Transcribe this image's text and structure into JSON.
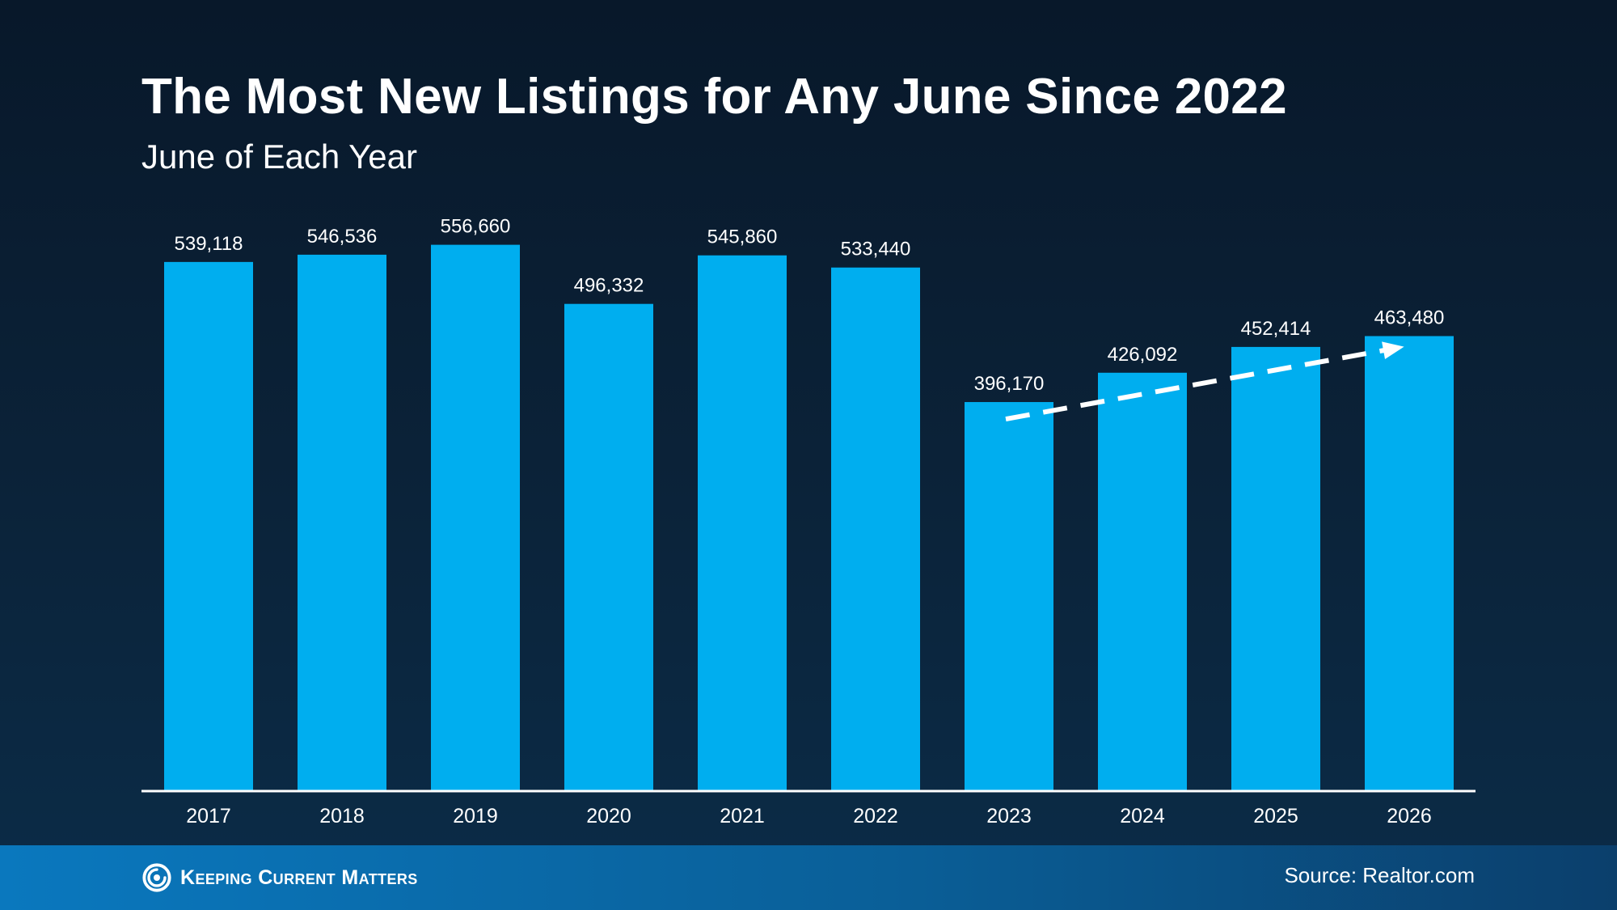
{
  "header": {
    "title": "The Most New Listings for Any June Since 2022",
    "subtitle": "June of Each Year"
  },
  "footer": {
    "brand": "Keeping Current Matters",
    "source": "Source: Realtor.com"
  },
  "colors": {
    "bar": "#00aeef",
    "axis": "#ffffff",
    "trend_arrow": "#ffffff",
    "footer_band": "#0a6fb0"
  },
  "chart_data": {
    "type": "bar",
    "title": "The Most New Listings for Any June Since 2022",
    "subtitle": "June of Each Year",
    "xlabel": "",
    "ylabel": "",
    "categories": [
      "2017",
      "2018",
      "2019",
      "2020",
      "2021",
      "2022",
      "2023",
      "2024",
      "2025",
      "2026"
    ],
    "values": [
      539118,
      546536,
      556660,
      496332,
      545860,
      533440,
      396170,
      426092,
      452414,
      463480
    ],
    "value_labels": [
      "539,118",
      "546,536",
      "556,660",
      "496,332",
      "545,860",
      "533,440",
      "396,170",
      "426,092",
      "452,414",
      "463,480"
    ],
    "ylim": [
      0,
      600000
    ],
    "grid": false,
    "legend": "none",
    "annotations": [
      {
        "type": "dashed-trend-arrow",
        "from": "2023",
        "to": "2026"
      }
    ]
  }
}
